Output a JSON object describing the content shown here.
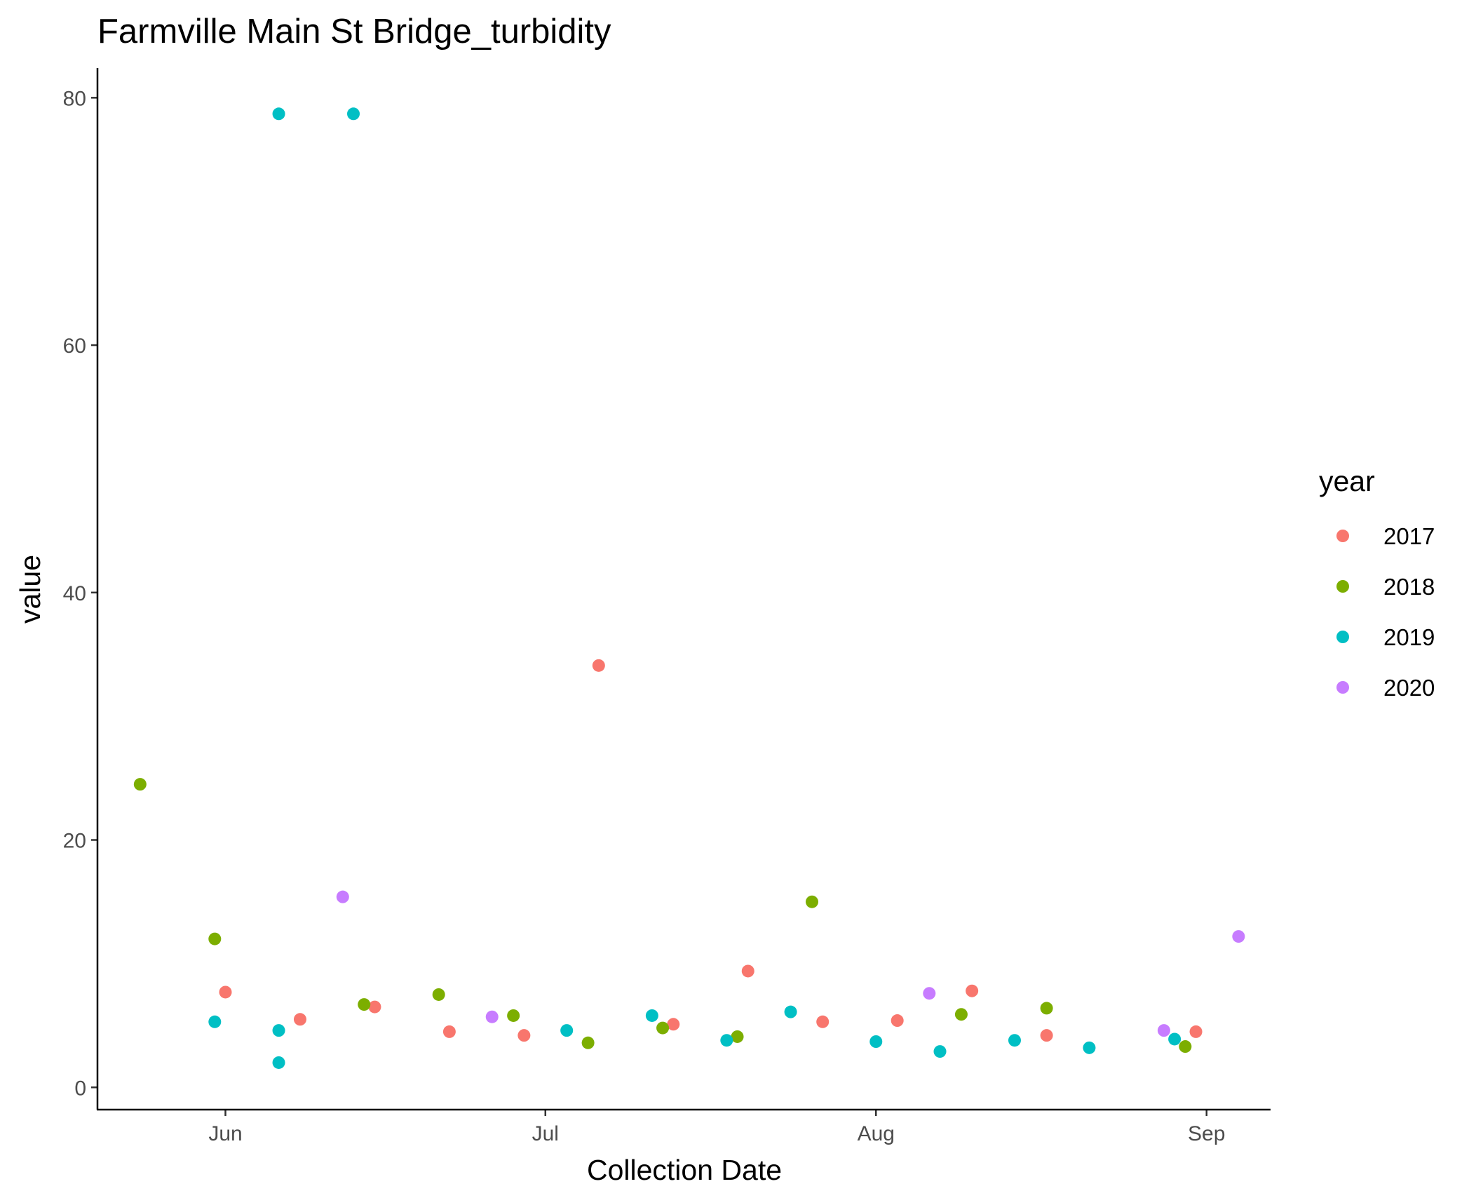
{
  "chart_data": {
    "type": "scatter",
    "title": "Farmville Main St Bridge_turbidity",
    "xlabel": "Collection Date",
    "ylabel": "value",
    "xlim": [
      "05-20",
      "09-07"
    ],
    "ylim": [
      -1.8,
      82.4
    ],
    "x_ticks": [
      {
        "date": "06-01",
        "label": "Jun"
      },
      {
        "date": "07-01",
        "label": "Jul"
      },
      {
        "date": "08-01",
        "label": "Aug"
      },
      {
        "date": "09-01",
        "label": "Sep"
      }
    ],
    "y_ticks": [
      0,
      20,
      40,
      60,
      80
    ],
    "grid": false,
    "legend": {
      "title": "year",
      "position": "right"
    },
    "series": [
      {
        "name": "2017",
        "color": "#F8766D",
        "points": [
          {
            "x": "06-01",
            "y": 7.7
          },
          {
            "x": "06-08",
            "y": 5.5
          },
          {
            "x": "06-15",
            "y": 6.5
          },
          {
            "x": "06-22",
            "y": 4.5
          },
          {
            "x": "06-29",
            "y": 4.2
          },
          {
            "x": "07-06",
            "y": 34.1
          },
          {
            "x": "07-13",
            "y": 5.1
          },
          {
            "x": "07-20",
            "y": 9.4
          },
          {
            "x": "07-27",
            "y": 5.3
          },
          {
            "x": "08-03",
            "y": 5.4
          },
          {
            "x": "08-10",
            "y": 7.8
          },
          {
            "x": "08-17",
            "y": 4.2
          },
          {
            "x": "08-31",
            "y": 4.5
          }
        ]
      },
      {
        "name": "2018",
        "color": "#7CAE00",
        "points": [
          {
            "x": "05-24",
            "y": 24.5
          },
          {
            "x": "05-31",
            "y": 12.0
          },
          {
            "x": "06-14",
            "y": 6.7
          },
          {
            "x": "06-21",
            "y": 7.5
          },
          {
            "x": "06-28",
            "y": 5.8
          },
          {
            "x": "07-05",
            "y": 3.6
          },
          {
            "x": "07-12",
            "y": 4.8
          },
          {
            "x": "07-19",
            "y": 4.1
          },
          {
            "x": "07-26",
            "y": 15.0
          },
          {
            "x": "08-09",
            "y": 5.9
          },
          {
            "x": "08-17",
            "y": 6.4
          },
          {
            "x": "08-30",
            "y": 3.3
          }
        ]
      },
      {
        "name": "2019",
        "color": "#00BFC4",
        "points": [
          {
            "x": "05-31",
            "y": 5.3
          },
          {
            "x": "06-06",
            "y": 78.7
          },
          {
            "x": "06-06",
            "y": 4.6
          },
          {
            "x": "06-06",
            "y": 2.0
          },
          {
            "x": "06-13",
            "y": 78.7
          },
          {
            "x": "07-03",
            "y": 4.6
          },
          {
            "x": "07-11",
            "y": 5.8
          },
          {
            "x": "07-18",
            "y": 3.8
          },
          {
            "x": "07-24",
            "y": 6.1
          },
          {
            "x": "08-01",
            "y": 3.7
          },
          {
            "x": "08-07",
            "y": 2.9
          },
          {
            "x": "08-14",
            "y": 3.8
          },
          {
            "x": "08-21",
            "y": 3.2
          },
          {
            "x": "08-29",
            "y": 3.9
          }
        ]
      },
      {
        "name": "2020",
        "color": "#C77CFF",
        "points": [
          {
            "x": "06-12",
            "y": 15.4
          },
          {
            "x": "06-26",
            "y": 5.7
          },
          {
            "x": "08-06",
            "y": 7.6
          },
          {
            "x": "08-28",
            "y": 4.6
          },
          {
            "x": "09-04",
            "y": 12.2
          }
        ]
      }
    ]
  }
}
